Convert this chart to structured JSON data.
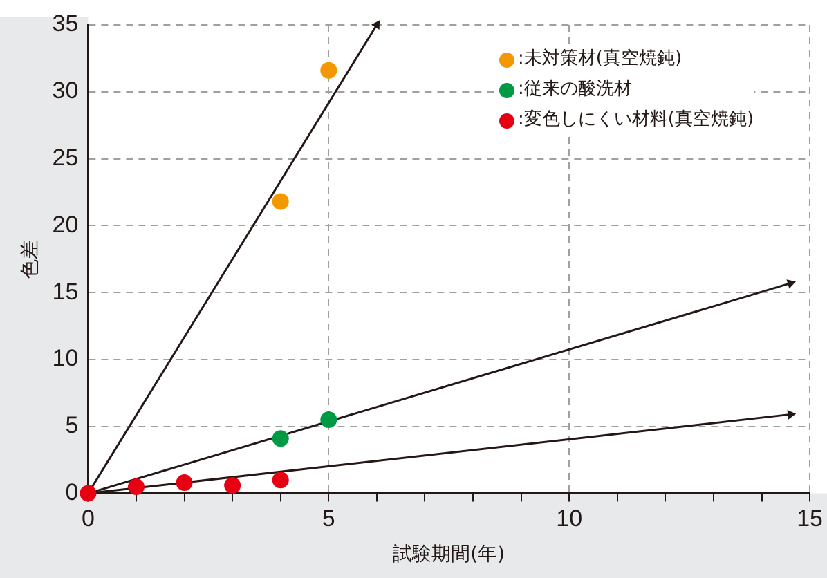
{
  "chart_data": {
    "type": "scatter",
    "xlabel": "試験期間(年)",
    "ylabel": "色差",
    "xlim": [
      0,
      15
    ],
    "xticks": [
      0,
      {
        "value": 1,
        "label": null
      },
      {
        "value": 2,
        "label": null
      },
      {
        "value": 3,
        "label": null
      },
      {
        "value": 4,
        "label": null
      },
      5,
      {
        "value": 6,
        "label": null
      },
      {
        "value": 7,
        "label": null
      },
      {
        "value": 8,
        "label": null
      },
      {
        "value": 9,
        "label": null
      },
      10,
      {
        "value": 11,
        "label": null
      },
      {
        "value": 12,
        "label": null
      },
      {
        "value": 13,
        "label": null
      },
      {
        "value": 14,
        "label": null
      },
      15
    ],
    "ylim": [
      0,
      35
    ],
    "yticks": [
      0,
      5,
      10,
      15,
      20,
      25,
      30,
      35
    ],
    "grid": true,
    "legend": "top right",
    "marker": "circle",
    "series": [
      {
        "name": ":未対策材(真空焼鈍)",
        "color": "#f39800",
        "x": [
          4,
          5
        ],
        "values": [
          21.8,
          31.6
        ]
      },
      {
        "name": ":従来の酸洗材",
        "color": "#009944",
        "x": [
          4,
          5
        ],
        "values": [
          4.1,
          5.5
        ]
      },
      {
        "name": ":変色しにくい材料(真空焼鈍)",
        "color": "#e60012",
        "x": [
          0,
          1,
          2,
          3,
          4
        ],
        "values": [
          0,
          0.5,
          0.8,
          0.6,
          1.0
        ]
      },
      {
        "type": "line",
        "color": "#231815",
        "marker": "triangle",
        "x": [
          0,
          6
        ],
        "values": [
          0,
          35
        ]
      },
      {
        "type": "line",
        "color": "#231815",
        "marker": "triangle",
        "x": [
          0,
          14.6
        ],
        "values": [
          0,
          15.7
        ]
      },
      {
        "type": "line",
        "color": "#231815",
        "marker": "triangle",
        "x": [
          0,
          14.6
        ],
        "values": [
          0,
          5.9
        ]
      }
    ]
  }
}
